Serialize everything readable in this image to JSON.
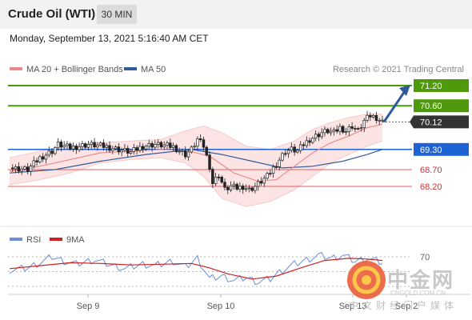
{
  "header": {
    "title": "Crude Oil (WTI)",
    "timeframe": "30 MIN"
  },
  "timestamp": "Monday, September 13, 2021 5:16:40 AM CET",
  "legend": {
    "ma20": "MA 20 + Bollinger Bands",
    "ma50": "MA 50",
    "credit": "Research © 2021 Trading Central"
  },
  "rsi_legend": {
    "rsi": "RSI",
    "ma9": "9MA"
  },
  "watermark": {
    "name": "中金网",
    "url": "CNGOLD.COM.CN",
    "sub": "中文财经门户媒体"
  },
  "colors": {
    "resistance": "#4f9a0c",
    "support": "#1e63d6",
    "target": "#e06060",
    "last": "#333333",
    "ma20": "#e88a8a",
    "ma50": "#2f5b9a",
    "band": "#fde1e1",
    "rsi": "#6b8fd8",
    "rsi_ma": "#cc2222"
  },
  "chart_data": {
    "type": "candlestick",
    "x_labels": [
      "Sep 9",
      "Sep 10",
      "Sep 13",
      "Sep 2"
    ],
    "levels": [
      {
        "value": 71.2,
        "label": "71.20",
        "kind": "resistance"
      },
      {
        "value": 70.6,
        "label": "70.60",
        "kind": "resistance"
      },
      {
        "value": 70.12,
        "label": "70.12",
        "kind": "last"
      },
      {
        "value": 69.3,
        "label": "69.30",
        "kind": "pivot"
      },
      {
        "value": 68.7,
        "label": "68.70",
        "kind": "support"
      },
      {
        "value": 68.2,
        "label": "68.20",
        "kind": "support"
      }
    ],
    "price_path": [
      [
        0,
        68.75
      ],
      [
        6,
        68.7
      ],
      [
        10,
        69.05
      ],
      [
        14,
        69.25
      ],
      [
        16,
        69.45
      ],
      [
        20,
        69.35
      ],
      [
        26,
        69.45
      ],
      [
        32,
        69.38
      ],
      [
        36,
        69.3
      ],
      [
        40,
        69.22
      ],
      [
        44,
        69.4
      ],
      [
        48,
        69.45
      ],
      [
        54,
        69.38
      ],
      [
        58,
        69.15
      ],
      [
        60,
        69.3
      ],
      [
        62,
        69.6
      ],
      [
        64,
        69.4
      ],
      [
        66,
        68.8
      ],
      [
        67,
        68.3
      ],
      [
        69,
        68.55
      ],
      [
        71,
        68.1
      ],
      [
        73,
        68.2
      ],
      [
        75,
        68.15
      ],
      [
        77,
        68.2
      ],
      [
        79,
        68.1
      ],
      [
        81,
        68.2
      ],
      [
        83,
        68.35
      ],
      [
        85,
        68.5
      ],
      [
        87,
        68.75
      ],
      [
        89,
        69.0
      ],
      [
        91,
        69.25
      ],
      [
        93,
        69.3
      ],
      [
        95,
        69.25
      ],
      [
        97,
        69.45
      ],
      [
        99,
        69.6
      ],
      [
        101,
        69.7
      ],
      [
        103,
        69.8
      ],
      [
        105,
        69.85
      ],
      [
        107,
        69.8
      ],
      [
        109,
        69.95
      ],
      [
        111,
        69.85
      ],
      [
        113,
        70.0
      ],
      [
        115,
        69.85
      ],
      [
        117,
        70.15
      ],
      [
        119,
        70.3
      ],
      [
        121,
        70.25
      ],
      [
        123,
        70.12
      ]
    ],
    "ma20": [
      [
        0,
        68.65
      ],
      [
        10,
        68.8
      ],
      [
        20,
        69.0
      ],
      [
        30,
        69.2
      ],
      [
        40,
        69.25
      ],
      [
        50,
        69.3
      ],
      [
        58,
        69.28
      ],
      [
        66,
        69.1
      ],
      [
        74,
        68.6
      ],
      [
        82,
        68.35
      ],
      [
        88,
        68.4
      ],
      [
        94,
        68.8
      ],
      [
        100,
        69.2
      ],
      [
        106,
        69.5
      ],
      [
        112,
        69.7
      ],
      [
        118,
        69.95
      ],
      [
        123,
        70.05
      ]
    ],
    "ma50": [
      [
        0,
        68.6
      ],
      [
        15,
        68.7
      ],
      [
        30,
        68.95
      ],
      [
        45,
        69.15
      ],
      [
        60,
        69.3
      ],
      [
        70,
        69.15
      ],
      [
        80,
        68.95
      ],
      [
        90,
        68.75
      ],
      [
        100,
        68.8
      ],
      [
        110,
        68.95
      ],
      [
        118,
        69.15
      ],
      [
        123,
        69.3
      ]
    ],
    "band_upper": [
      [
        0,
        69.05
      ],
      [
        10,
        69.25
      ],
      [
        20,
        69.4
      ],
      [
        30,
        69.5
      ],
      [
        40,
        69.55
      ],
      [
        50,
        69.6
      ],
      [
        58,
        69.85
      ],
      [
        64,
        70.0
      ],
      [
        70,
        69.8
      ],
      [
        78,
        69.4
      ],
      [
        86,
        69.3
      ],
      [
        94,
        69.55
      ],
      [
        100,
        69.9
      ],
      [
        106,
        70.1
      ],
      [
        112,
        70.25
      ],
      [
        118,
        70.35
      ],
      [
        123,
        70.35
      ]
    ],
    "band_lower": [
      [
        0,
        68.25
      ],
      [
        10,
        68.4
      ],
      [
        20,
        68.6
      ],
      [
        30,
        68.9
      ],
      [
        40,
        69.0
      ],
      [
        50,
        69.05
      ],
      [
        58,
        68.9
      ],
      [
        64,
        68.5
      ],
      [
        70,
        67.85
      ],
      [
        78,
        67.6
      ],
      [
        86,
        67.75
      ],
      [
        94,
        68.1
      ],
      [
        100,
        68.5
      ],
      [
        106,
        68.9
      ],
      [
        112,
        69.15
      ],
      [
        118,
        69.4
      ],
      [
        123,
        69.55
      ]
    ],
    "rsi_ticks": [
      70
    ],
    "rsi": [
      [
        0,
        52
      ],
      [
        6,
        55
      ],
      [
        10,
        62
      ],
      [
        14,
        70
      ],
      [
        18,
        64
      ],
      [
        22,
        60
      ],
      [
        28,
        66
      ],
      [
        34,
        58
      ],
      [
        38,
        54
      ],
      [
        44,
        60
      ],
      [
        48,
        58
      ],
      [
        54,
        64
      ],
      [
        58,
        56
      ],
      [
        62,
        68
      ],
      [
        66,
        40
      ],
      [
        70,
        44
      ],
      [
        74,
        38
      ],
      [
        78,
        42
      ],
      [
        82,
        36
      ],
      [
        86,
        40
      ],
      [
        90,
        52
      ],
      [
        94,
        60
      ],
      [
        98,
        66
      ],
      [
        102,
        72
      ],
      [
        106,
        68
      ],
      [
        110,
        72
      ],
      [
        114,
        64
      ],
      [
        118,
        68
      ],
      [
        123,
        62
      ]
    ],
    "rsi_ma": [
      [
        0,
        54
      ],
      [
        10,
        58
      ],
      [
        20,
        62
      ],
      [
        30,
        61
      ],
      [
        40,
        59
      ],
      [
        50,
        60
      ],
      [
        60,
        61
      ],
      [
        66,
        55
      ],
      [
        72,
        47
      ],
      [
        80,
        40
      ],
      [
        88,
        44
      ],
      [
        96,
        55
      ],
      [
        104,
        65
      ],
      [
        112,
        68
      ],
      [
        118,
        67
      ],
      [
        123,
        65
      ]
    ],
    "forecast_arrow": {
      "from": 70.12,
      "to": 71.2
    }
  }
}
